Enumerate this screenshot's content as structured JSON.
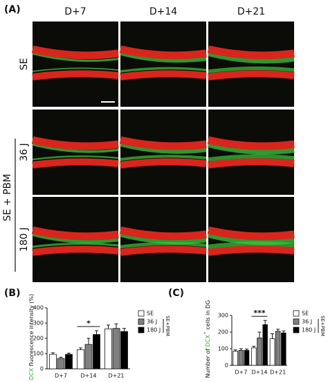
{
  "panel_labels": [
    "(A)",
    "(B)",
    "(C)"
  ],
  "image_grid": {
    "columns": [
      "D+7",
      "D+14",
      "D+21"
    ],
    "rows": [
      "SE",
      "36 J",
      "180 J"
    ],
    "group_label": "SE + PBM"
  },
  "chart_data": [
    {
      "type": "bar",
      "ylabel": [
        {
          "text": "DCX",
          "color": "#2ea82e"
        },
        {
          "text": " fluorescence intensity (%)"
        }
      ],
      "categories": [
        "D+7",
        "D+14",
        "D+21"
      ],
      "series": [
        {
          "name": "SE",
          "color": "#ffffff",
          "values": [
            95,
            125,
            262
          ],
          "errors": [
            10,
            12,
            25
          ]
        },
        {
          "name": "36 J",
          "color": "#808080",
          "values": [
            68,
            160,
            265
          ],
          "errors": [
            8,
            40,
            30
          ]
        },
        {
          "name": "180 J",
          "color": "#000000",
          "values": [
            95,
            225,
            245
          ],
          "errors": [
            8,
            25,
            20
          ]
        }
      ],
      "legend_group": "SE+PBM",
      "significance": [
        {
          "label": "*",
          "category": "D+14"
        }
      ],
      "ylim": [
        0,
        400
      ],
      "yticks": [
        0,
        100,
        200,
        300,
        400
      ]
    },
    {
      "type": "bar",
      "ylabel": [
        {
          "text": "Number of "
        },
        {
          "text": "DCX",
          "color": "#2ea82e"
        },
        {
          "text": "+",
          "color": "#2ea82e",
          "superscript": true
        },
        {
          "text": " cells in DG"
        }
      ],
      "categories": [
        "D+7",
        "D+14",
        "D+21"
      ],
      "series": [
        {
          "name": "SE",
          "color": "#ffffff",
          "values": [
            85,
            105,
            160
          ],
          "errors": [
            8,
            10,
            30
          ]
        },
        {
          "name": "36 J",
          "color": "#808080",
          "values": [
            90,
            165,
            205
          ],
          "errors": [
            10,
            35,
            12
          ]
        },
        {
          "name": "180 J",
          "color": "#000000",
          "values": [
            90,
            245,
            195
          ],
          "errors": [
            8,
            25,
            12
          ]
        }
      ],
      "legend_group": "SE+PBM",
      "significance": [
        {
          "label": "***",
          "category": "D+14"
        }
      ],
      "ylim": [
        0,
        300
      ],
      "yticks": [
        0,
        100,
        200,
        300
      ]
    }
  ]
}
